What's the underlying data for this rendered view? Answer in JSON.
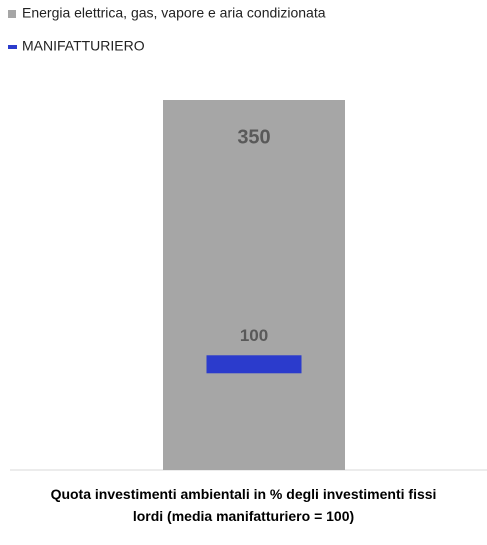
{
  "chart_data": {
    "type": "bar",
    "categories": [
      "Quota investimenti ambientali in % degli investimenti fissi lordi (media manifatturiero = 100)"
    ],
    "series": [
      {
        "name": "Energia elettrica, gas, vapore e aria condizionata",
        "color": "#a6a6a6",
        "values": [
          350
        ],
        "marker": "bar"
      },
      {
        "name": "MANIFATTURIERO",
        "color": "#2b3bcc",
        "values": [
          100
        ],
        "marker": "dash"
      }
    ],
    "ylim": [
      0,
      350
    ],
    "data_labels": true
  }
}
